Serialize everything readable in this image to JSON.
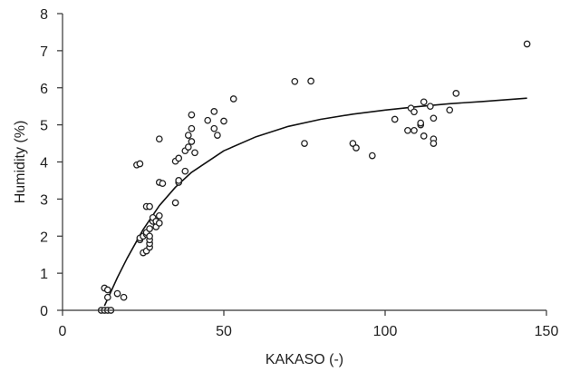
{
  "chart_data": {
    "type": "scatter",
    "title": "",
    "xlabel": "KAKASO (-)",
    "ylabel": "Humidity (%)",
    "xlim": [
      0,
      150
    ],
    "ylim": [
      0,
      8
    ],
    "xticks": [
      0,
      50,
      100,
      150
    ],
    "yticks": [
      0,
      1,
      2,
      3,
      4,
      5,
      6,
      7,
      8
    ],
    "grid": false,
    "legend": "none",
    "marker": "open-circle",
    "colors": {
      "marker": "#222222",
      "curve": "#111111",
      "axis": "#333333"
    },
    "series": [
      {
        "points": [
          [
            12,
            0.0
          ],
          [
            13,
            0.0
          ],
          [
            14,
            0.0
          ],
          [
            15,
            0.0
          ],
          [
            13,
            0.6
          ],
          [
            14,
            0.55
          ],
          [
            14,
            0.35
          ],
          [
            17,
            0.45
          ],
          [
            19,
            0.35
          ],
          [
            23,
            3.92
          ],
          [
            24,
            3.95
          ],
          [
            24,
            1.9
          ],
          [
            24,
            1.95
          ],
          [
            25,
            1.55
          ],
          [
            25,
            2.0
          ],
          [
            26,
            1.6
          ],
          [
            26,
            2.05
          ],
          [
            26,
            2.1
          ],
          [
            26,
            2.8
          ],
          [
            27,
            2.8
          ],
          [
            27,
            1.7
          ],
          [
            27,
            1.8
          ],
          [
            27,
            1.9
          ],
          [
            27,
            2.0
          ],
          [
            27,
            2.2
          ],
          [
            28,
            2.4
          ],
          [
            28,
            2.5
          ],
          [
            29,
            2.25
          ],
          [
            29,
            2.4
          ],
          [
            30,
            2.35
          ],
          [
            30,
            2.55
          ],
          [
            30,
            3.45
          ],
          [
            31,
            3.42
          ],
          [
            30,
            4.62
          ],
          [
            35,
            2.9
          ],
          [
            36,
            3.45
          ],
          [
            36,
            3.5
          ],
          [
            35,
            4.02
          ],
          [
            36,
            4.1
          ],
          [
            38,
            3.75
          ],
          [
            38,
            4.3
          ],
          [
            39,
            4.4
          ],
          [
            39,
            4.72
          ],
          [
            40,
            4.55
          ],
          [
            40,
            4.9
          ],
          [
            40,
            5.27
          ],
          [
            41,
            4.25
          ],
          [
            45,
            5.12
          ],
          [
            47,
            4.9
          ],
          [
            48,
            4.72
          ],
          [
            47,
            5.36
          ],
          [
            50,
            5.1
          ],
          [
            53,
            5.7
          ],
          [
            72,
            6.17
          ],
          [
            77,
            6.18
          ],
          [
            75,
            4.5
          ],
          [
            90,
            4.5
          ],
          [
            91,
            4.38
          ],
          [
            96,
            4.17
          ],
          [
            103,
            5.15
          ],
          [
            107,
            4.85
          ],
          [
            108,
            5.45
          ],
          [
            109,
            5.35
          ],
          [
            109,
            4.85
          ],
          [
            111,
            5.0
          ],
          [
            111,
            5.05
          ],
          [
            112,
            5.62
          ],
          [
            112,
            4.7
          ],
          [
            114,
            5.5
          ],
          [
            115,
            5.18
          ],
          [
            115,
            4.62
          ],
          [
            115,
            4.5
          ],
          [
            120,
            5.4
          ],
          [
            122,
            5.85
          ],
          [
            144,
            7.18
          ]
        ]
      }
    ],
    "fit_curve": {
      "x": [
        13,
        15,
        17,
        20,
        25,
        30,
        35,
        40,
        50,
        60,
        70,
        80,
        90,
        100,
        110,
        120,
        130,
        144
      ],
      "y": [
        0.12,
        0.5,
        0.88,
        1.4,
        2.18,
        2.82,
        3.32,
        3.72,
        4.3,
        4.68,
        4.96,
        5.15,
        5.29,
        5.4,
        5.49,
        5.57,
        5.63,
        5.72
      ]
    }
  }
}
